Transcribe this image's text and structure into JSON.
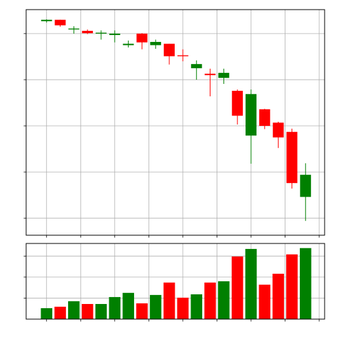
{
  "chart_data": [
    {
      "type": "candlestick",
      "categories": [
        null,
        null,
        null,
        null,
        null,
        null,
        null,
        null,
        null,
        null,
        null,
        null,
        null,
        null,
        null,
        null,
        null,
        null,
        null,
        null
      ],
      "open": [
        4.27,
        4.3,
        4.09,
        4.06,
        4.0,
        3.97,
        3.75,
        4.0,
        3.75,
        3.78,
        3.53,
        3.25,
        3.13,
        3.04,
        2.76,
        1.79,
        2.36,
        2.07,
        1.87,
        0.46
      ],
      "high": [
        4.31,
        4.3,
        4.16,
        4.09,
        4.07,
        4.07,
        3.85,
        4.01,
        3.87,
        3.78,
        3.66,
        3.42,
        3.24,
        3.24,
        2.79,
        2.79,
        2.37,
        2.09,
        1.94,
        1.19
      ],
      "low": [
        4.24,
        4.15,
        4.0,
        3.99,
        3.87,
        3.81,
        3.7,
        3.66,
        3.67,
        3.33,
        3.4,
        3.0,
        2.64,
        2.91,
        2.03,
        1.18,
        1.93,
        1.52,
        0.64,
        -0.06
      ],
      "close": [
        4.3,
        4.18,
        4.11,
        4.01,
        4.02,
        4.0,
        3.78,
        3.81,
        3.82,
        3.51,
        3.51,
        3.34,
        3.1,
        3.15,
        2.22,
        2.69,
        2.0,
        1.75,
        0.76,
        0.94
      ],
      "up_color": "#008000",
      "down_color": "#ff0000",
      "xlim": [
        -1.5,
        20.4
      ],
      "xticks": [
        0,
        2.5,
        5,
        7.5,
        10,
        12.5,
        15,
        17.5,
        20
      ],
      "ylim": [
        -0.37,
        4.52
      ],
      "yticks": [
        0,
        1,
        2,
        3,
        4
      ],
      "grid": true
    },
    {
      "type": "bar",
      "categories": [
        null,
        null,
        null,
        null,
        null,
        null,
        null,
        null,
        null,
        null,
        null,
        null,
        null,
        null,
        null,
        null,
        null,
        null,
        null,
        null
      ],
      "values": [
        0.52,
        0.59,
        0.85,
        0.72,
        0.72,
        1.05,
        1.25,
        0.75,
        1.15,
        1.74,
        1.02,
        1.18,
        1.74,
        1.8,
        2.98,
        3.34,
        1.64,
        2.16,
        3.08,
        3.38
      ],
      "colors": [
        "#008000",
        "#ff0000",
        "#008000",
        "#ff0000",
        "#008000",
        "#008000",
        "#008000",
        "#ff0000",
        "#008000",
        "#ff0000",
        "#ff0000",
        "#008000",
        "#ff0000",
        "#008000",
        "#ff0000",
        "#008000",
        "#ff0000",
        "#ff0000",
        "#ff0000",
        "#008000"
      ],
      "xlim": [
        -1.5,
        20.4
      ],
      "xticks": [
        0,
        2.5,
        5,
        7.5,
        10,
        12.5,
        15,
        17.5,
        20
      ],
      "ylim": [
        0,
        3.6
      ],
      "yticks": [
        1,
        2,
        3
      ],
      "grid": true
    }
  ]
}
